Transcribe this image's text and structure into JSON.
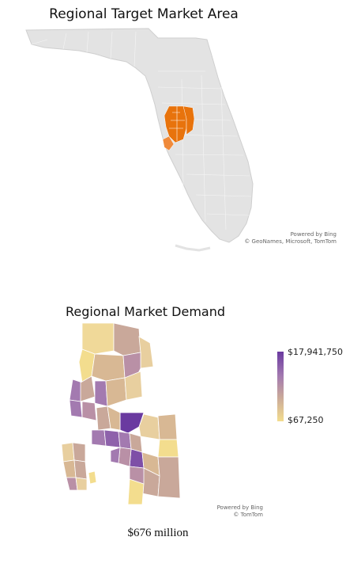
{
  "top_map": {
    "title": "Regional Target Market Area",
    "credit_line1": "Powered by Bing",
    "credit_line2": "© GeoNames, Microsoft, TomTom",
    "base_color": "#e3e3e3",
    "highlight_color": "#e8730c"
  },
  "bottom_map": {
    "title": "Regional Market Demand",
    "credit_line1": "Powered by Bing",
    "credit_line2": "© TomTom",
    "legend": {
      "max_label": "$17,941,750",
      "min_label": "$67,250",
      "max_color": "#6a3aa0",
      "min_color": "#f3dd8e"
    },
    "total_label": "$676 million"
  }
}
